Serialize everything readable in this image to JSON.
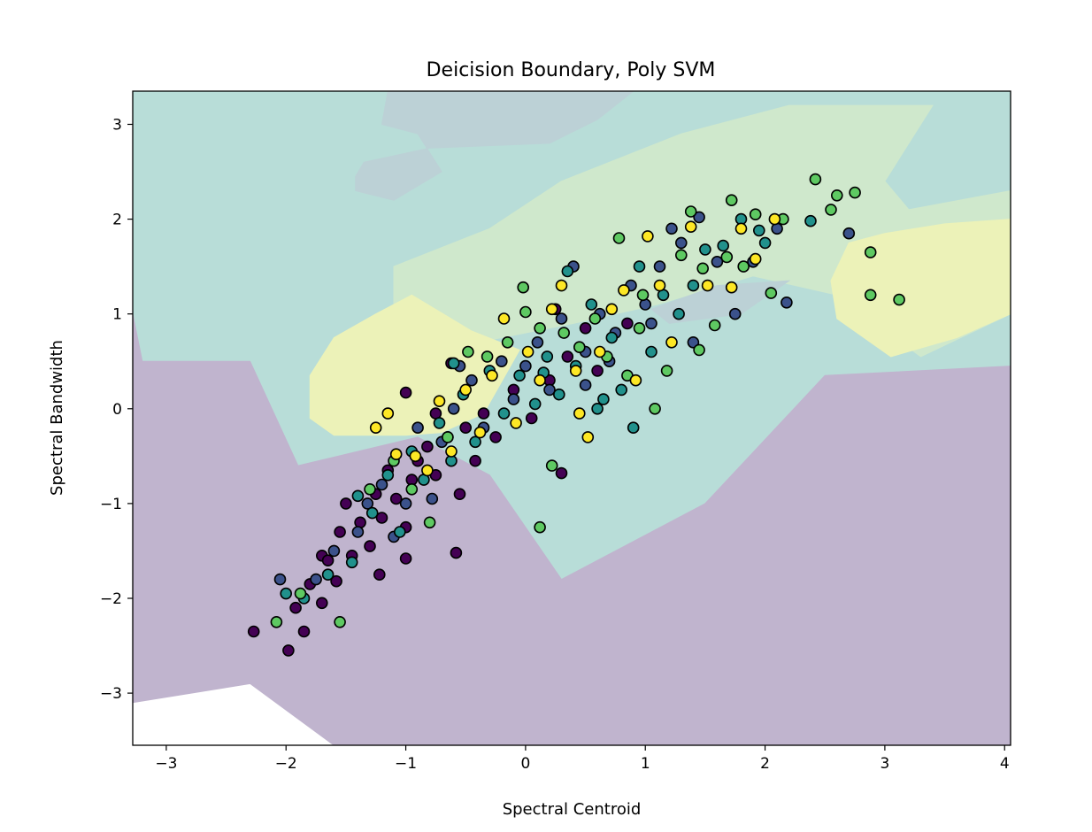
{
  "chart_data": {
    "type": "scatter",
    "title": "Deicision Boundary, Poly SVM",
    "xlabel": "Spectral Centroid",
    "ylabel": "Spectral Bandwidth",
    "xlim": [
      -3.28,
      4.05
    ],
    "ylim": [
      -3.55,
      3.35
    ],
    "x_ticks": [
      -3,
      -2,
      -1,
      0,
      1,
      2,
      3,
      4
    ],
    "y_ticks": [
      -3,
      -2,
      -1,
      0,
      1,
      2,
      3
    ],
    "x_tick_labels": [
      "−3",
      "−2",
      "−1",
      "0",
      "1",
      "2",
      "3",
      "4"
    ],
    "y_tick_labels": [
      "−3",
      "−2",
      "−1",
      "0",
      "1",
      "2",
      "3"
    ],
    "grid": false,
    "legend": "none",
    "colormap": "viridis",
    "class_colors": [
      "#440154",
      "#3b528b",
      "#21918c",
      "#5ec962",
      "#fde725"
    ],
    "decision_regions": [
      {
        "class": 2,
        "color": "#b8ddd8",
        "polygon": [
          [
            -3.28,
            1.0
          ],
          [
            -3.28,
            3.35
          ],
          [
            4.05,
            3.35
          ],
          [
            4.05,
            0.45
          ],
          [
            2.5,
            0.35
          ],
          [
            1.5,
            -1.0
          ],
          [
            0.3,
            -1.8
          ],
          [
            -0.3,
            -0.7
          ],
          [
            -0.9,
            -0.3
          ],
          [
            -1.9,
            -0.6
          ],
          [
            -2.3,
            0.5
          ],
          [
            -3.2,
            0.5
          ]
        ]
      },
      {
        "class": 3,
        "color": "#cfe8cc",
        "polygon": [
          [
            -1.1,
            1.0
          ],
          [
            -1.1,
            1.5
          ],
          [
            -0.3,
            1.9
          ],
          [
            0.3,
            2.4
          ],
          [
            1.3,
            2.9
          ],
          [
            2.2,
            3.2
          ],
          [
            3.4,
            3.2
          ],
          [
            3.0,
            2.4
          ],
          [
            3.2,
            2.1
          ],
          [
            4.05,
            2.3
          ],
          [
            4.05,
            1.0
          ],
          [
            3.3,
            0.55
          ],
          [
            2.6,
            1.2
          ],
          [
            1.9,
            1.4
          ],
          [
            1.1,
            1.1
          ],
          [
            0.4,
            0.9
          ],
          [
            -0.4,
            0.7
          ]
        ]
      },
      {
        "class": 1,
        "color": "#bcd1d6",
        "polygon": [
          [
            -1.15,
            3.35
          ],
          [
            0.9,
            3.35
          ],
          [
            0.6,
            3.05
          ],
          [
            0.2,
            2.8
          ],
          [
            -0.8,
            2.75
          ],
          [
            -1.35,
            2.6
          ],
          [
            -1.42,
            2.45
          ],
          [
            -1.42,
            2.3
          ],
          [
            -1.1,
            2.2
          ],
          [
            -0.7,
            2.5
          ],
          [
            -0.9,
            2.9
          ],
          [
            -1.2,
            3.0
          ]
        ]
      },
      {
        "class": 1,
        "color": "#bcd1d6",
        "polygon": [
          [
            1.05,
            1.05
          ],
          [
            1.6,
            1.3
          ],
          [
            2.2,
            1.35
          ],
          [
            1.8,
            1.0
          ],
          [
            1.2,
            0.9
          ]
        ]
      },
      {
        "class": 4,
        "color": "#ecf2b8",
        "polygon": [
          [
            -1.8,
            0.35
          ],
          [
            -1.6,
            0.75
          ],
          [
            -1.25,
            1.0
          ],
          [
            -0.95,
            1.2
          ],
          [
            -0.45,
            0.82
          ],
          [
            -0.05,
            0.62
          ],
          [
            -0.35,
            -0.05
          ],
          [
            -0.7,
            -0.25
          ],
          [
            -1.0,
            -0.28
          ],
          [
            -1.6,
            -0.28
          ],
          [
            -1.8,
            -0.1
          ]
        ]
      },
      {
        "class": 4,
        "color": "#ecf2b8",
        "polygon": [
          [
            2.55,
            1.35
          ],
          [
            2.7,
            1.75
          ],
          [
            3.0,
            1.85
          ],
          [
            3.5,
            1.95
          ],
          [
            4.05,
            2.0
          ],
          [
            4.05,
            1.0
          ],
          [
            3.6,
            0.75
          ],
          [
            3.05,
            0.55
          ],
          [
            2.6,
            0.95
          ]
        ]
      },
      {
        "class": 0,
        "color": "#c0b4ce",
        "polygon": [
          [
            -3.28,
            1.0
          ],
          [
            -3.2,
            0.5
          ],
          [
            -2.3,
            0.5
          ],
          [
            -1.9,
            -0.6
          ],
          [
            -0.9,
            -0.3
          ],
          [
            -0.3,
            -0.7
          ],
          [
            0.3,
            -1.8
          ],
          [
            1.5,
            -1.0
          ],
          [
            2.5,
            0.35
          ],
          [
            4.05,
            0.45
          ],
          [
            4.05,
            -3.55
          ],
          [
            -1.6,
            -3.55
          ],
          [
            -2.3,
            -2.9
          ],
          [
            -3.28,
            -3.1
          ]
        ]
      }
    ],
    "series": [
      {
        "class": 0,
        "color": "#440154",
        "points": [
          [
            -2.27,
            -2.35
          ],
          [
            -1.98,
            -2.55
          ],
          [
            -1.92,
            -2.1
          ],
          [
            -1.85,
            -2.35
          ],
          [
            -1.7,
            -2.05
          ],
          [
            -1.8,
            -1.85
          ],
          [
            -1.7,
            -1.55
          ],
          [
            -1.55,
            -1.3
          ],
          [
            -1.5,
            -1.0
          ],
          [
            -1.45,
            -1.55
          ],
          [
            -1.38,
            -1.2
          ],
          [
            -1.3,
            -1.45
          ],
          [
            -1.25,
            -0.9
          ],
          [
            -1.2,
            -1.15
          ],
          [
            -1.15,
            -0.65
          ],
          [
            -1.08,
            -0.95
          ],
          [
            -1.0,
            -1.25
          ],
          [
            -0.95,
            -0.75
          ],
          [
            -0.9,
            -0.55
          ],
          [
            -0.82,
            -0.4
          ],
          [
            -0.75,
            -0.7
          ],
          [
            -0.65,
            -0.3
          ],
          [
            -0.55,
            -0.9
          ],
          [
            -0.5,
            -0.2
          ],
          [
            -0.42,
            -0.55
          ],
          [
            -0.35,
            -0.05
          ],
          [
            -0.25,
            -0.3
          ],
          [
            -0.1,
            0.2
          ],
          [
            0.05,
            -0.1
          ],
          [
            0.2,
            0.3
          ],
          [
            0.35,
            0.55
          ],
          [
            0.5,
            0.85
          ],
          [
            0.6,
            0.4
          ],
          [
            0.85,
            0.9
          ],
          [
            -1.0,
            0.17
          ],
          [
            -1.65,
            -1.6
          ],
          [
            -1.58,
            -1.82
          ],
          [
            -1.22,
            -1.75
          ],
          [
            -1.0,
            -1.58
          ],
          [
            -0.58,
            -1.52
          ],
          [
            0.3,
            -0.68
          ],
          [
            0.25,
            1.05
          ],
          [
            -0.62,
            0.48
          ],
          [
            -0.75,
            -0.05
          ]
        ]
      },
      {
        "class": 1,
        "color": "#3b528b",
        "points": [
          [
            -2.05,
            -1.8
          ],
          [
            -1.75,
            -1.8
          ],
          [
            -1.6,
            -1.5
          ],
          [
            -1.4,
            -1.3
          ],
          [
            -1.32,
            -1.0
          ],
          [
            -1.2,
            -0.8
          ],
          [
            -1.1,
            -1.35
          ],
          [
            -1.0,
            -1.0
          ],
          [
            -0.9,
            -0.2
          ],
          [
            -0.78,
            -0.95
          ],
          [
            -0.7,
            -0.35
          ],
          [
            -0.6,
            0.0
          ],
          [
            -0.45,
            0.3
          ],
          [
            -0.35,
            -0.2
          ],
          [
            -0.2,
            0.5
          ],
          [
            -0.1,
            0.1
          ],
          [
            0.0,
            0.45
          ],
          [
            0.1,
            0.7
          ],
          [
            0.2,
            0.2
          ],
          [
            0.3,
            0.95
          ],
          [
            0.4,
            1.5
          ],
          [
            0.5,
            0.6
          ],
          [
            0.62,
            1.0
          ],
          [
            0.75,
            0.8
          ],
          [
            0.88,
            1.3
          ],
          [
            1.0,
            1.1
          ],
          [
            1.12,
            1.5
          ],
          [
            1.22,
            1.9
          ],
          [
            1.3,
            1.75
          ],
          [
            1.45,
            2.02
          ],
          [
            1.6,
            1.55
          ],
          [
            1.75,
            1.0
          ],
          [
            1.9,
            1.55
          ],
          [
            2.1,
            1.9
          ],
          [
            2.18,
            1.12
          ],
          [
            2.7,
            1.85
          ],
          [
            1.05,
            0.9
          ],
          [
            1.4,
            0.7
          ],
          [
            -0.55,
            0.45
          ],
          [
            0.5,
            0.25
          ],
          [
            0.7,
            0.5
          ]
        ]
      },
      {
        "class": 2,
        "color": "#21918c",
        "points": [
          [
            -2.0,
            -1.95
          ],
          [
            -1.85,
            -2.0
          ],
          [
            -1.65,
            -1.75
          ],
          [
            -1.45,
            -1.62
          ],
          [
            -1.4,
            -0.92
          ],
          [
            -1.28,
            -1.1
          ],
          [
            -1.15,
            -0.7
          ],
          [
            -1.05,
            -1.3
          ],
          [
            -0.95,
            -0.45
          ],
          [
            -0.85,
            -0.75
          ],
          [
            -0.72,
            -0.15
          ],
          [
            -0.62,
            -0.55
          ],
          [
            -0.52,
            0.15
          ],
          [
            -0.42,
            -0.35
          ],
          [
            -0.3,
            0.4
          ],
          [
            -0.18,
            -0.05
          ],
          [
            -0.05,
            0.35
          ],
          [
            0.08,
            0.05
          ],
          [
            0.18,
            0.55
          ],
          [
            0.28,
            0.15
          ],
          [
            0.35,
            1.45
          ],
          [
            0.42,
            0.45
          ],
          [
            0.55,
            1.1
          ],
          [
            0.65,
            0.1
          ],
          [
            0.72,
            0.75
          ],
          [
            0.8,
            0.2
          ],
          [
            0.95,
            1.5
          ],
          [
            1.05,
            0.6
          ],
          [
            1.15,
            1.2
          ],
          [
            1.28,
            1.0
          ],
          [
            1.4,
            1.3
          ],
          [
            1.5,
            1.68
          ],
          [
            1.65,
            1.72
          ],
          [
            1.8,
            2.0
          ],
          [
            1.95,
            1.88
          ],
          [
            2.0,
            1.75
          ],
          [
            2.38,
            1.98
          ],
          [
            0.15,
            0.38
          ],
          [
            -0.6,
            0.48
          ],
          [
            0.6,
            0.0
          ],
          [
            0.9,
            -0.2
          ]
        ]
      },
      {
        "class": 3,
        "color": "#5ec962",
        "points": [
          [
            -2.08,
            -2.25
          ],
          [
            -1.88,
            -1.95
          ],
          [
            -1.55,
            -2.25
          ],
          [
            -1.3,
            -0.85
          ],
          [
            -1.1,
            -0.55
          ],
          [
            -0.95,
            -0.85
          ],
          [
            -0.8,
            -1.2
          ],
          [
            -0.65,
            -0.3
          ],
          [
            -0.48,
            0.6
          ],
          [
            -0.32,
            0.55
          ],
          [
            -0.15,
            0.7
          ],
          [
            0.0,
            1.02
          ],
          [
            0.12,
            0.85
          ],
          [
            0.22,
            -0.6
          ],
          [
            0.32,
            0.8
          ],
          [
            0.45,
            0.65
          ],
          [
            0.58,
            0.95
          ],
          [
            0.68,
            0.55
          ],
          [
            0.78,
            1.8
          ],
          [
            0.85,
            0.35
          ],
          [
            0.98,
            1.2
          ],
          [
            1.08,
            0.0
          ],
          [
            1.18,
            0.4
          ],
          [
            1.3,
            1.62
          ],
          [
            1.38,
            2.08
          ],
          [
            1.48,
            1.48
          ],
          [
            1.58,
            0.88
          ],
          [
            1.68,
            1.6
          ],
          [
            1.72,
            2.2
          ],
          [
            1.82,
            1.5
          ],
          [
            1.92,
            2.05
          ],
          [
            2.05,
            1.22
          ],
          [
            2.15,
            2.0
          ],
          [
            2.42,
            2.42
          ],
          [
            2.55,
            2.1
          ],
          [
            2.6,
            2.25
          ],
          [
            2.75,
            2.28
          ],
          [
            2.88,
            1.65
          ],
          [
            2.88,
            1.2
          ],
          [
            3.12,
            1.15
          ],
          [
            0.12,
            -1.25
          ],
          [
            -0.02,
            1.28
          ],
          [
            0.95,
            0.85
          ],
          [
            1.45,
            0.62
          ]
        ]
      },
      {
        "class": 4,
        "color": "#fde725",
        "points": [
          [
            -1.25,
            -0.2
          ],
          [
            -1.08,
            -0.48
          ],
          [
            -0.92,
            -0.5
          ],
          [
            -0.82,
            -0.65
          ],
          [
            -0.72,
            0.08
          ],
          [
            -0.62,
            -0.45
          ],
          [
            -0.5,
            0.2
          ],
          [
            -0.38,
            -0.25
          ],
          [
            -0.28,
            0.35
          ],
          [
            -0.18,
            0.95
          ],
          [
            -0.08,
            -0.15
          ],
          [
            0.02,
            0.6
          ],
          [
            0.12,
            0.3
          ],
          [
            0.22,
            1.05
          ],
          [
            0.3,
            1.3
          ],
          [
            0.42,
            0.4
          ],
          [
            0.52,
            -0.3
          ],
          [
            0.62,
            0.6
          ],
          [
            0.72,
            1.05
          ],
          [
            0.82,
            1.25
          ],
          [
            0.92,
            0.3
          ],
          [
            1.02,
            1.82
          ],
          [
            1.12,
            1.3
          ],
          [
            1.22,
            0.7
          ],
          [
            1.38,
            1.92
          ],
          [
            1.52,
            1.3
          ],
          [
            1.72,
            1.28
          ],
          [
            1.8,
            1.9
          ],
          [
            1.92,
            1.58
          ],
          [
            2.08,
            2.0
          ],
          [
            -1.15,
            -0.05
          ],
          [
            0.45,
            -0.05
          ]
        ]
      }
    ]
  }
}
